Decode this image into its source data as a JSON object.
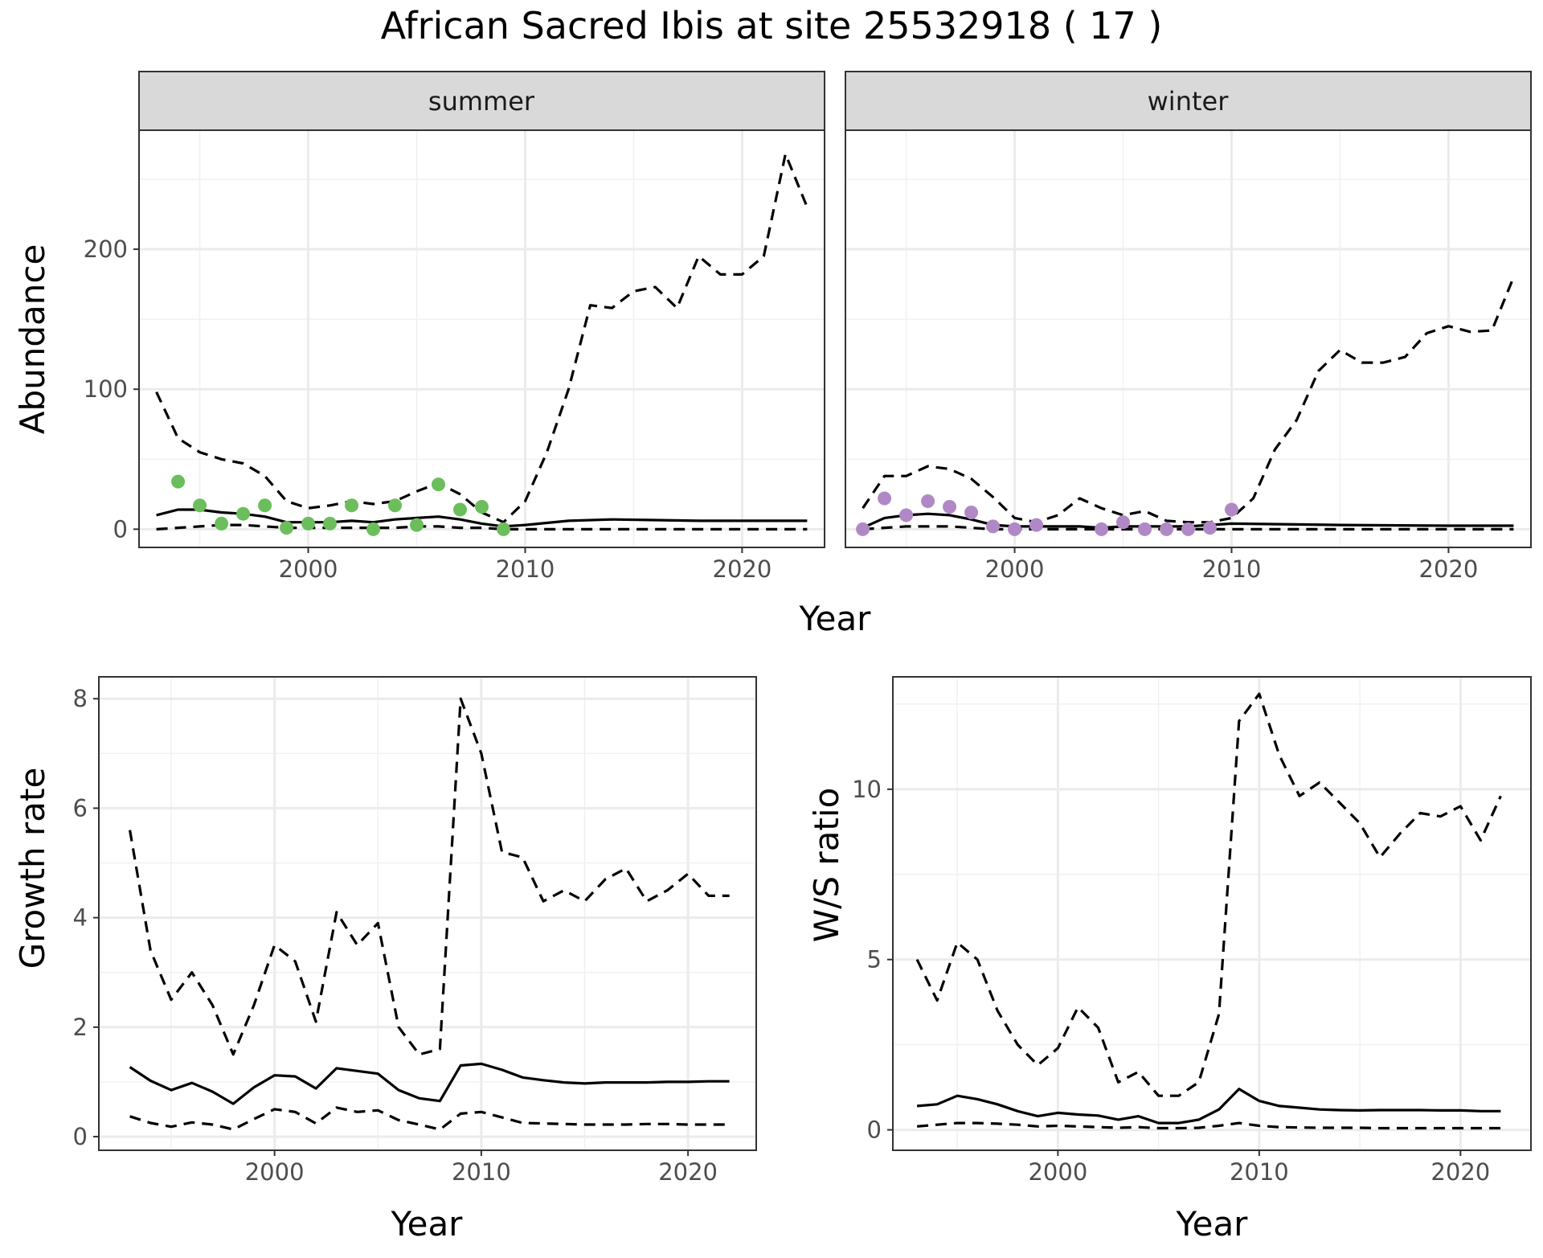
{
  "figure": {
    "title": "African Sacred Ibis at site 25532918 ( 17 )"
  },
  "chart_data": [
    {
      "id": "abundance_summer",
      "type": "line",
      "title": "",
      "facet": "summer",
      "xlabel": "Year",
      "ylabel": "Abundance",
      "xlim": [
        1992.2,
        2023.8
      ],
      "ylim": [
        -13,
        285
      ],
      "xticks": [
        2000,
        2010,
        2020
      ],
      "yticks": [
        0,
        100,
        200
      ],
      "grid": true,
      "point_color": "#6BBE5B",
      "series": [
        {
          "name": "",
          "style": "solid",
          "x": [
            1993,
            1994,
            1995,
            1996,
            1997,
            1998,
            1999,
            2000,
            2001,
            2002,
            2003,
            2004,
            2005,
            2006,
            2007,
            2008,
            2009,
            2010,
            2012,
            2014,
            2016,
            2018,
            2020,
            2023
          ],
          "y": [
            10,
            14,
            14,
            12,
            11,
            9,
            5,
            5,
            5,
            6,
            5,
            7,
            8,
            9,
            7,
            4,
            2,
            3,
            6,
            7,
            6.5,
            6,
            6,
            6
          ]
        },
        {
          "name": "",
          "style": "dashed",
          "x": [
            1993,
            1994,
            1995,
            1996,
            1997,
            1998,
            1999,
            2000,
            2001,
            2002,
            2003,
            2004,
            2005,
            2006,
            2007,
            2008,
            2009,
            2010,
            2011,
            2012,
            2013,
            2014,
            2015,
            2016,
            2017,
            2018,
            2019,
            2020,
            2021,
            2022,
            2023
          ],
          "y": [
            98,
            65,
            55,
            50,
            47,
            38,
            20,
            15,
            17,
            20,
            18,
            20,
            27,
            33,
            25,
            12,
            5,
            20,
            55,
            100,
            160,
            158,
            170,
            173,
            158,
            195,
            182,
            182,
            195,
            268,
            230
          ]
        },
        {
          "name": "",
          "style": "dashed",
          "x": [
            1993,
            1994,
            1995,
            1996,
            1997,
            1998,
            1999,
            2000,
            2001,
            2002,
            2003,
            2004,
            2005,
            2006,
            2007,
            2008,
            2009,
            2010,
            2015,
            2020,
            2023
          ],
          "y": [
            0,
            1,
            2,
            3,
            3,
            2,
            1,
            1,
            1,
            1,
            1,
            1,
            2,
            2,
            1,
            1,
            0,
            0,
            0,
            0,
            0
          ]
        }
      ],
      "points": {
        "x": [
          1994,
          1995,
          1996,
          1997,
          1998,
          1999,
          2000,
          2001,
          2002,
          2003,
          2004,
          2005,
          2006,
          2007,
          2008,
          2009
        ],
        "y": [
          34,
          17,
          4,
          11,
          17,
          1,
          4,
          4,
          17,
          0,
          17,
          3,
          32,
          14,
          16,
          0
        ]
      }
    },
    {
      "id": "abundance_winter",
      "type": "line",
      "title": "",
      "facet": "winter",
      "xlabel": "Year",
      "ylabel": "",
      "xlim": [
        1992.2,
        2023.8
      ],
      "ylim": [
        -13,
        285
      ],
      "xticks": [
        2000,
        2010,
        2020
      ],
      "yticks": [],
      "grid": true,
      "point_color": "#B088C6",
      "series": [
        {
          "name": "",
          "style": "solid",
          "x": [
            1993,
            1994,
            1995,
            1996,
            1997,
            1998,
            1999,
            2000,
            2001,
            2002,
            2003,
            2004,
            2005,
            2006,
            2007,
            2008,
            2009,
            2010,
            2015,
            2020,
            2023
          ],
          "y": [
            1,
            8,
            10,
            11,
            10,
            7,
            3,
            2,
            2,
            2,
            2,
            1,
            2,
            2,
            2,
            2,
            3,
            4,
            3,
            2.5,
            2.5
          ]
        },
        {
          "name": "",
          "style": "dashed",
          "x": [
            1993,
            1994,
            1995,
            1996,
            1997,
            1998,
            1999,
            2000,
            2001,
            2002,
            2003,
            2004,
            2005,
            2006,
            2007,
            2008,
            2009,
            2010,
            2011,
            2012,
            2013,
            2014,
            2015,
            2016,
            2017,
            2018,
            2019,
            2020,
            2021,
            2022,
            2023
          ],
          "y": [
            15,
            38,
            38,
            45,
            43,
            36,
            23,
            8,
            5,
            10,
            22,
            15,
            10,
            13,
            6,
            5,
            5,
            8,
            22,
            57,
            78,
            113,
            128,
            119,
            119,
            123,
            140,
            145,
            141,
            142,
            180
          ]
        },
        {
          "name": "",
          "style": "dashed",
          "x": [
            1993,
            1994,
            1995,
            1996,
            1997,
            1998,
            1999,
            2000,
            2005,
            2010,
            2015,
            2020,
            2023
          ],
          "y": [
            0,
            1,
            2,
            2,
            2,
            1,
            0,
            0,
            0,
            0,
            0,
            0,
            0
          ]
        }
      ],
      "points": {
        "x": [
          1993,
          1994,
          1995,
          1996,
          1997,
          1998,
          1999,
          2000,
          2001,
          2004,
          2005,
          2006,
          2007,
          2008,
          2009,
          2010
        ],
        "y": [
          0,
          22,
          10,
          20,
          16,
          12,
          2,
          0,
          3,
          0,
          5,
          0,
          0,
          0,
          1,
          14
        ]
      }
    },
    {
      "id": "growth_rate",
      "type": "line",
      "title": "",
      "xlabel": "Year",
      "ylabel": "Growth rate",
      "xlim": [
        1991.5,
        2023.3
      ],
      "ylim": [
        -0.25,
        8.4
      ],
      "xticks": [
        2000,
        2010,
        2020
      ],
      "yticks": [
        0,
        2,
        4,
        6,
        8
      ],
      "grid": true,
      "series": [
        {
          "name": "",
          "style": "solid",
          "x": [
            1993,
            1994,
            1995,
            1996,
            1997,
            1998,
            1999,
            2000,
            2001,
            2002,
            2003,
            2004,
            2005,
            2006,
            2007,
            2008,
            2009,
            2010,
            2011,
            2012,
            2013,
            2014,
            2015,
            2016,
            2017,
            2018,
            2019,
            2020,
            2021,
            2022
          ],
          "y": [
            1.27,
            1.02,
            0.85,
            0.98,
            0.82,
            0.6,
            0.9,
            1.12,
            1.1,
            0.88,
            1.25,
            1.2,
            1.15,
            0.85,
            0.7,
            0.65,
            1.3,
            1.33,
            1.22,
            1.08,
            1.03,
            0.99,
            0.97,
            0.99,
            0.99,
            0.99,
            1.0,
            1.0,
            1.01,
            1.01
          ]
        },
        {
          "name": "",
          "style": "dashed",
          "x": [
            1993,
            1994,
            1995,
            1996,
            1997,
            1998,
            1999,
            2000,
            2001,
            2002,
            2003,
            2004,
            2005,
            2006,
            2007,
            2008,
            2009,
            2010,
            2011,
            2012,
            2013,
            2014,
            2015,
            2016,
            2017,
            2018,
            2019,
            2020,
            2021,
            2022
          ],
          "y": [
            5.6,
            3.4,
            2.5,
            3.0,
            2.4,
            1.5,
            2.4,
            3.5,
            3.2,
            2.1,
            4.1,
            3.5,
            3.9,
            2.0,
            1.5,
            1.6,
            8.0,
            7.0,
            5.2,
            5.1,
            4.3,
            4.5,
            4.3,
            4.7,
            4.9,
            4.3,
            4.5,
            4.8,
            4.4,
            4.4
          ]
        },
        {
          "name": "",
          "style": "dashed",
          "x": [
            1993,
            1994,
            1995,
            1996,
            1997,
            1998,
            1999,
            2000,
            2001,
            2002,
            2003,
            2004,
            2005,
            2006,
            2007,
            2008,
            2009,
            2010,
            2011,
            2012,
            2013,
            2014,
            2015,
            2016,
            2017,
            2018,
            2019,
            2020,
            2021,
            2022
          ],
          "y": [
            0.37,
            0.25,
            0.18,
            0.26,
            0.22,
            0.13,
            0.32,
            0.5,
            0.45,
            0.24,
            0.53,
            0.45,
            0.48,
            0.3,
            0.22,
            0.13,
            0.42,
            0.45,
            0.35,
            0.25,
            0.24,
            0.23,
            0.22,
            0.22,
            0.22,
            0.23,
            0.23,
            0.22,
            0.22,
            0.22
          ]
        }
      ]
    },
    {
      "id": "ws_ratio",
      "type": "line",
      "title": "",
      "xlabel": "Year",
      "ylabel": "W/S ratio",
      "xlim": [
        1991.8,
        2023.5
      ],
      "ylim": [
        -0.6,
        13.3
      ],
      "xticks": [
        2000,
        2010,
        2020
      ],
      "yticks": [
        0,
        5,
        10
      ],
      "grid": true,
      "series": [
        {
          "name": "",
          "style": "solid",
          "x": [
            1993,
            1994,
            1995,
            1996,
            1997,
            1998,
            1999,
            2000,
            2001,
            2002,
            2003,
            2004,
            2005,
            2006,
            2007,
            2008,
            2009,
            2010,
            2011,
            2012,
            2013,
            2014,
            2015,
            2016,
            2017,
            2018,
            2019,
            2020,
            2021,
            2022
          ],
          "y": [
            0.7,
            0.75,
            1.0,
            0.9,
            0.75,
            0.55,
            0.4,
            0.5,
            0.45,
            0.42,
            0.3,
            0.4,
            0.2,
            0.2,
            0.3,
            0.6,
            1.2,
            0.85,
            0.7,
            0.65,
            0.6,
            0.58,
            0.57,
            0.58,
            0.58,
            0.58,
            0.57,
            0.57,
            0.55,
            0.55
          ]
        },
        {
          "name": "",
          "style": "dashed",
          "x": [
            1993,
            1994,
            1995,
            1996,
            1997,
            1998,
            1999,
            2000,
            2001,
            2002,
            2003,
            2004,
            2005,
            2006,
            2007,
            2008,
            2009,
            2010,
            2011,
            2012,
            2013,
            2014,
            2015,
            2016,
            2017,
            2018,
            2019,
            2020,
            2021,
            2022
          ],
          "y": [
            5.0,
            3.8,
            5.5,
            5.0,
            3.5,
            2.5,
            1.9,
            2.4,
            3.6,
            3.0,
            1.4,
            1.7,
            1.0,
            1.0,
            1.4,
            3.4,
            12.0,
            12.8,
            11.0,
            9.8,
            10.2,
            9.6,
            9.0,
            8.0,
            8.7,
            9.3,
            9.2,
            9.5,
            8.5,
            9.8
          ]
        },
        {
          "name": "",
          "style": "dashed",
          "x": [
            1993,
            1994,
            1995,
            1996,
            1997,
            1998,
            1999,
            2000,
            2001,
            2002,
            2003,
            2004,
            2005,
            2006,
            2007,
            2008,
            2009,
            2010,
            2011,
            2012,
            2013,
            2014,
            2015,
            2016,
            2017,
            2018,
            2019,
            2020,
            2021,
            2022
          ],
          "y": [
            0.1,
            0.15,
            0.2,
            0.2,
            0.18,
            0.15,
            0.1,
            0.12,
            0.1,
            0.08,
            0.06,
            0.08,
            0.05,
            0.05,
            0.06,
            0.12,
            0.2,
            0.12,
            0.08,
            0.07,
            0.06,
            0.06,
            0.06,
            0.05,
            0.05,
            0.05,
            0.05,
            0.05,
            0.05,
            0.05
          ]
        }
      ]
    }
  ]
}
